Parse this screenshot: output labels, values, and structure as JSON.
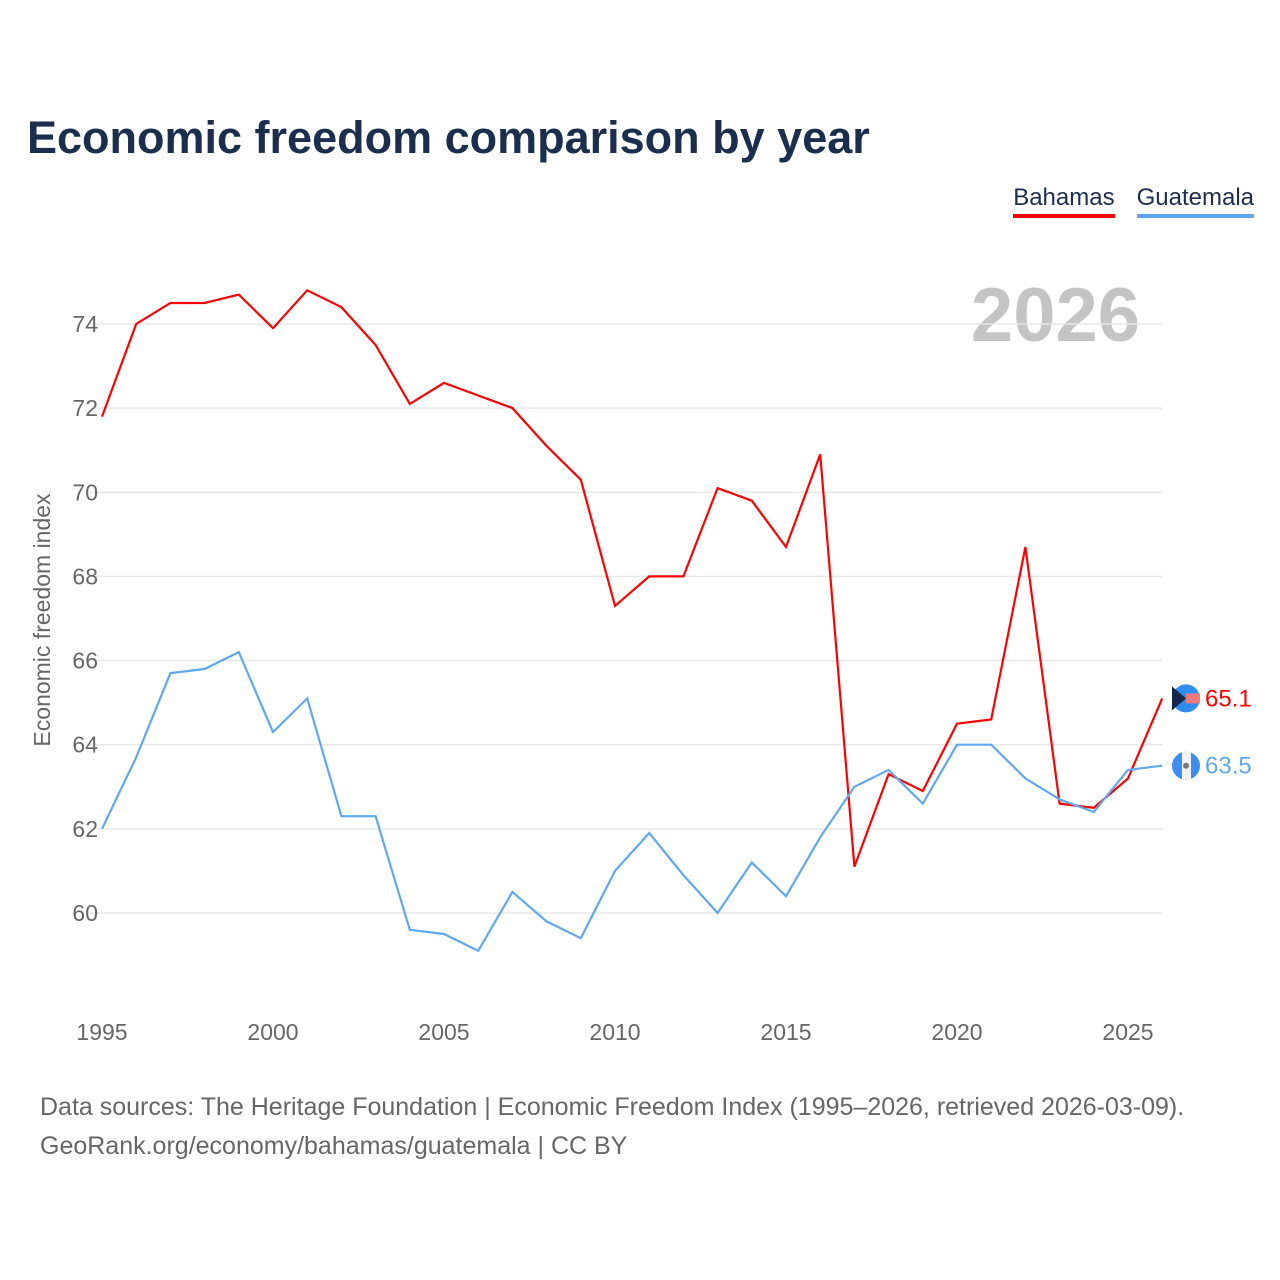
{
  "title": "Economic freedom comparison by year",
  "chart_data": {
    "type": "line",
    "title": "Economic freedom comparison by year",
    "xlabel": "",
    "ylabel": "Economic freedom index",
    "xlim": [
      1995,
      2026
    ],
    "ylim": [
      58.5,
      75.5
    ],
    "x_ticks": [
      1995,
      2000,
      2005,
      2010,
      2015,
      2020,
      2025
    ],
    "y_ticks": [
      60,
      62,
      64,
      66,
      68,
      70,
      72,
      74
    ],
    "grid": true,
    "legend_position": "top-right",
    "year_watermark": "2026",
    "x": [
      1995,
      1996,
      1997,
      1998,
      1999,
      2000,
      2001,
      2002,
      2003,
      2004,
      2005,
      2006,
      2007,
      2008,
      2009,
      2010,
      2011,
      2012,
      2013,
      2014,
      2015,
      2016,
      2017,
      2018,
      2019,
      2020,
      2021,
      2022,
      2023,
      2024,
      2025,
      2026
    ],
    "series": [
      {
        "name": "Bahamas",
        "color": "#ff0000",
        "end_label": "65.1",
        "values": [
          71.8,
          74.0,
          74.5,
          74.5,
          74.7,
          73.9,
          74.8,
          74.4,
          73.5,
          72.1,
          72.6,
          72.3,
          72.0,
          71.1,
          70.3,
          67.3,
          68.0,
          68.0,
          70.1,
          69.8,
          68.7,
          70.9,
          61.1,
          63.3,
          62.9,
          64.5,
          64.6,
          68.7,
          62.6,
          62.5,
          63.2,
          65.1
        ]
      },
      {
        "name": "Guatemala",
        "color": "#5fa8ee",
        "end_label": "63.5",
        "values": [
          62.0,
          63.7,
          65.7,
          65.8,
          66.2,
          64.3,
          65.1,
          62.3,
          62.3,
          59.6,
          59.5,
          59.1,
          60.5,
          59.8,
          59.4,
          61.0,
          61.9,
          60.9,
          60.0,
          61.2,
          60.4,
          61.8,
          63.0,
          63.4,
          62.6,
          64.0,
          64.0,
          63.2,
          62.7,
          62.4,
          63.4,
          63.5
        ]
      }
    ]
  },
  "footer": {
    "line1": "Data sources: The Heritage Foundation | Economic Freedom Index (1995–2026, retrieved 2026-03-09).",
    "line2": "GeoRank.org/economy/bahamas/guatemala | CC BY"
  }
}
